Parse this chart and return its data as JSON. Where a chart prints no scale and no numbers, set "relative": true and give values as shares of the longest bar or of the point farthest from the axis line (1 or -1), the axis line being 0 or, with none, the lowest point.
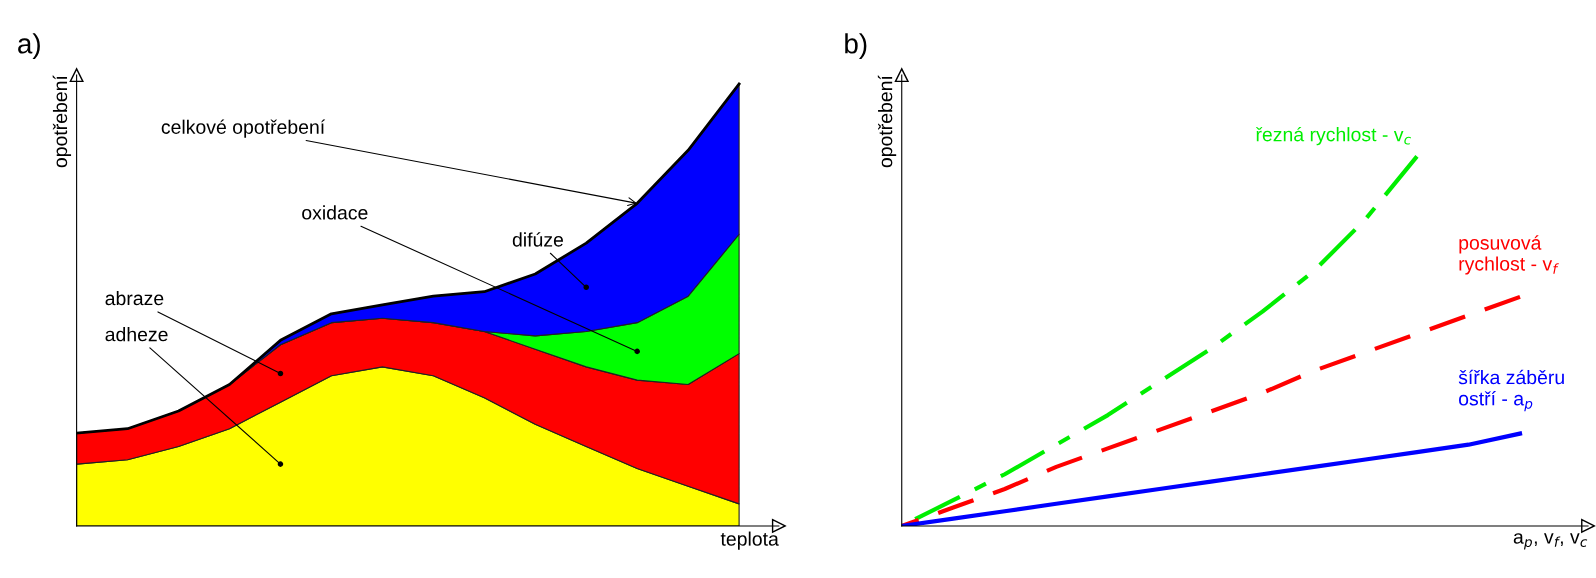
{
  "chart_data": [
    {
      "type": "area",
      "title": "a)",
      "xlabel": "teplota",
      "ylabel": "opotřebení",
      "relative": true,
      "stacked": true,
      "categories": [
        null,
        null,
        null,
        null,
        null,
        null,
        null,
        null,
        null,
        null,
        null,
        null,
        null,
        null
      ],
      "series": [
        {
          "name": "adheze",
          "color": "#ffff00",
          "values": [
            0.14,
            0.15,
            0.18,
            0.22,
            0.28,
            0.34,
            0.36,
            0.34,
            0.29,
            0.23,
            0.18,
            0.13,
            0.09,
            0.05
          ]
        },
        {
          "name": "abraze",
          "color": "#ff0000",
          "values": [
            0.07,
            0.07,
            0.08,
            0.1,
            0.13,
            0.12,
            0.11,
            0.12,
            0.15,
            0.17,
            0.18,
            0.2,
            0.23,
            0.34
          ]
        },
        {
          "name": "oxidace",
          "color": "#00ff00",
          "values": [
            0,
            0,
            0,
            0,
            0,
            0,
            0,
            0,
            0,
            0.03,
            0.08,
            0.13,
            0.2,
            0.27
          ]
        },
        {
          "name": "difúze",
          "color": "#0000ff",
          "values": [
            0,
            0,
            0,
            0,
            0.01,
            0.02,
            0.03,
            0.06,
            0.09,
            0.14,
            0.2,
            0.27,
            0.33,
            0.34
          ]
        }
      ],
      "annotations": [
        "celkové opotřebení"
      ]
    },
    {
      "type": "line",
      "title": "b)",
      "xlabel": "a$_{p}$, v$_{f}$, v$_{c}$",
      "ylabel": "opotřebení",
      "relative": true,
      "marker": "none",
      "categories": [
        null,
        null,
        null,
        null,
        null,
        null,
        null,
        null,
        null,
        null,
        null,
        null,
        null
      ],
      "series": [
        {
          "name": "řezná rychlost - v$_{c}$",
          "color": "#00ee00",
          "line_style": "dashdot",
          "values": [
            0,
            0.07,
            0.14,
            0.22,
            0.3,
            0.39,
            0.48,
            0.58,
            0.69,
            0.83,
            1,
            null,
            null
          ]
        },
        {
          "name": "posuvová\nrychlost - v$_{f}$",
          "color": "#ff0000",
          "line_style": "dashed",
          "values": [
            0,
            0.05,
            0.1,
            0.16,
            0.21,
            0.26,
            0.31,
            0.36,
            0.42,
            0.47,
            0.52,
            0.57,
            0.62
          ]
        },
        {
          "name": "šířka záběru\nostří - a$_{p}$",
          "color": "#0000ff",
          "line_style": "solid",
          "values": [
            0,
            0.02,
            0.04,
            0.06,
            0.08,
            0.1,
            0.12,
            0.14,
            0.16,
            0.18,
            0.2,
            0.22,
            0.25
          ]
        }
      ]
    }
  ]
}
